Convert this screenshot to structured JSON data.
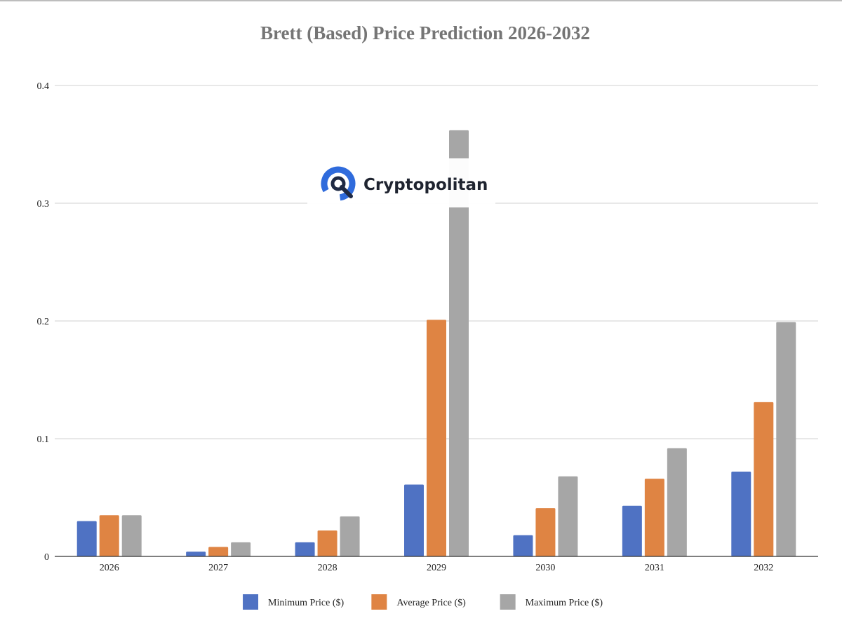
{
  "chart_data": {
    "type": "bar",
    "title": "Brett (Based) Price Prediction 2026-2032",
    "xlabel": "",
    "ylabel": "",
    "categories": [
      "2026",
      "2027",
      "2028",
      "2029",
      "2030",
      "2031",
      "2032"
    ],
    "series": [
      {
        "name": "Minimum Price ($)",
        "color": "#4f72c3",
        "values": [
          0.03,
          0.004,
          0.012,
          0.061,
          0.018,
          0.043,
          0.072
        ]
      },
      {
        "name": "Average Price ($)",
        "color": "#df8443",
        "values": [
          0.035,
          0.008,
          0.022,
          0.201,
          0.041,
          0.066,
          0.131
        ]
      },
      {
        "name": "Maximum Price ($)",
        "color": "#a6a6a6",
        "values": [
          0.035,
          0.012,
          0.034,
          0.362,
          0.068,
          0.092,
          0.199
        ]
      }
    ],
    "ylim": [
      0,
      0.4
    ],
    "yticks": [
      0,
      0.1,
      0.2,
      0.3,
      0.4
    ],
    "ytick_labels": [
      "0",
      "0.1",
      "0.2",
      "0.3",
      "0.4"
    ],
    "grid": true,
    "legend_position": "bottom-center"
  },
  "watermark": {
    "text": "Cryptopolitan",
    "logo_icon": "cryptopolitan-logo-icon",
    "logo_color": "#2f6bdc"
  }
}
